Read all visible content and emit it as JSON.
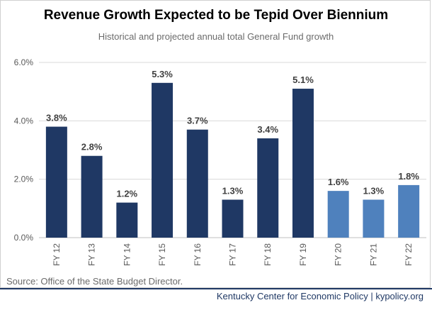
{
  "title": "Revenue Growth Expected to be Tepid Over Biennium",
  "subtitle": "Historical and projected annual total General Fund growth",
  "source": "Source: Office of the State Budget Director.",
  "footer": "Kentucky Center for Economic Policy | kypolicy.org",
  "colors": {
    "historical": "#1f3864",
    "projected": "#4f81bd",
    "grid": "#d9d9d9",
    "axis_text": "#595959"
  },
  "chart_data": {
    "type": "bar",
    "title": "Revenue Growth Expected to be Tepid Over Biennium",
    "subtitle": "Historical and projected annual total General Fund growth",
    "categories": [
      "FY 12",
      "FY 13",
      "FY 14",
      "FY 15",
      "FY 16",
      "FY 17",
      "FY 18",
      "FY 19",
      "FY 20",
      "FY 21",
      "FY 22"
    ],
    "values": [
      3.8,
      2.8,
      1.2,
      5.3,
      3.7,
      1.3,
      3.4,
      5.1,
      1.6,
      1.3,
      1.8
    ],
    "data_labels": [
      "3.8%",
      "2.8%",
      "1.2%",
      "5.3%",
      "3.7%",
      "1.3%",
      "3.4%",
      "5.1%",
      "1.6%",
      "1.3%",
      "1.8%"
    ],
    "projected": [
      false,
      false,
      false,
      false,
      false,
      false,
      false,
      false,
      true,
      true,
      true
    ],
    "yticks": [
      0,
      2,
      4,
      6
    ],
    "ytick_labels": [
      "0.0%",
      "2.0%",
      "4.0%",
      "6.0%"
    ],
    "ylim": [
      0,
      6
    ],
    "grid": true,
    "xlabel": "",
    "ylabel": ""
  }
}
